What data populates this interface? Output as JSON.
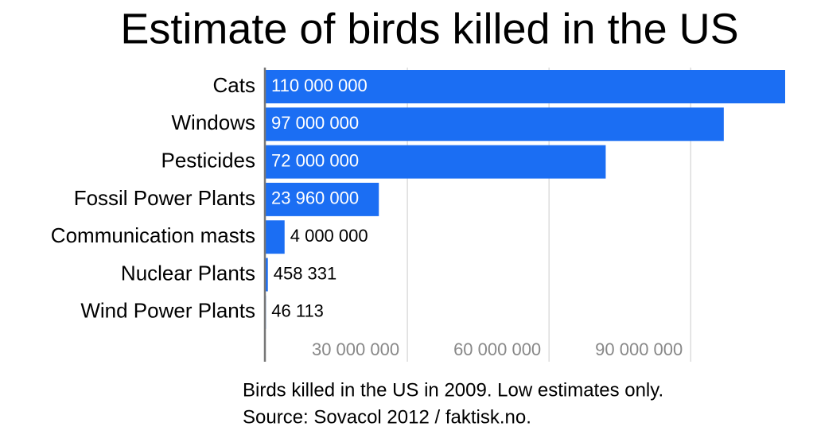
{
  "chart_data": {
    "type": "hbar",
    "title": "Estimate of birds killed in the US",
    "categories": [
      "Cats",
      "Windows",
      "Pesticides",
      "Fossil Power Plants",
      "Communication masts",
      "Nuclear Plants",
      "Wind Power Plants"
    ],
    "values": [
      110000000,
      97000000,
      72000000,
      23960000,
      4000000,
      458331,
      46113
    ],
    "value_labels": [
      "110 000 000",
      "97 000 000",
      "72 000 000",
      "23 960 000",
      "4 000 000",
      "458 331",
      "46 113"
    ],
    "color": "#1b6ef3",
    "xlim": [
      0,
      110000000
    ],
    "xticks": [
      {
        "value": 30000000,
        "label": "30 000 000"
      },
      {
        "value": 60000000,
        "label": "60 000 000"
      },
      {
        "value": 90000000,
        "label": "90 000 000"
      }
    ],
    "grid": true,
    "notes": [
      "Birds killed in the US in 2009. Low estimates only.",
      "Source: Sovacol 2012 / faktisk.no."
    ]
  }
}
